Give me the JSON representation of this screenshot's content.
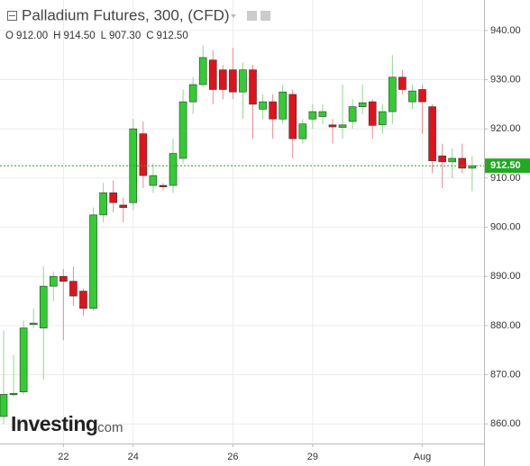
{
  "chart_data": {
    "type": "candlestick",
    "title": "Palladium Futures, 300, (CFD)",
    "ohlc_header": [
      {
        "key": "O",
        "label": "912.00"
      },
      {
        "key": "H",
        "label": "914.50"
      },
      {
        "key": "L",
        "label": "907.30"
      },
      {
        "key": "C",
        "label": "912.50"
      }
    ],
    "logo": {
      "main": "Investing",
      "suffix": ".com"
    },
    "categories": [
      null,
      null,
      null,
      null,
      null,
      null,
      "22",
      null,
      null,
      null,
      null,
      null,
      null,
      "24",
      null,
      null,
      null,
      null,
      null,
      null,
      null,
      null,
      null,
      "26",
      null,
      null,
      null,
      null,
      null,
      null,
      null,
      "29",
      null,
      null,
      null,
      null,
      null,
      null,
      null,
      null,
      null,
      null,
      "Aug",
      null,
      null,
      null,
      null,
      null
    ],
    "open": [
      861.5,
      866,
      866.5,
      880.2,
      879.5,
      888,
      890,
      889,
      887,
      883.5,
      902.5,
      907,
      904.5,
      905,
      919,
      908.5,
      908.5,
      908.5,
      914,
      925.5,
      929,
      934,
      932,
      932,
      927.5,
      932,
      924,
      925.5,
      922,
      927,
      918,
      922,
      922.5,
      920.8,
      920.3,
      921.5,
      924.5,
      925.5,
      920.8,
      923.5,
      930.5,
      925.5,
      928,
      924.5,
      914.5,
      913.3,
      914,
      912
    ],
    "high": [
      879,
      874,
      881,
      883.5,
      892,
      891,
      891.5,
      892,
      887.5,
      904,
      909,
      909.5,
      906,
      922,
      921.5,
      913,
      909,
      918,
      928,
      930.5,
      937,
      936,
      933,
      936.5,
      933.5,
      933,
      927,
      927,
      929,
      928,
      922,
      925,
      925,
      922,
      929,
      926,
      929,
      926,
      925,
      935,
      932,
      929,
      929,
      925,
      917,
      916,
      917,
      914.5
    ],
    "low": [
      860,
      865.5,
      866,
      879.5,
      869,
      885,
      877,
      884,
      882,
      883,
      901,
      903,
      901,
      903.5,
      908,
      907,
      907.5,
      907,
      913,
      923,
      928.5,
      925,
      926,
      926,
      922,
      918,
      922,
      918,
      921,
      914,
      917,
      920,
      921,
      917,
      918,
      920,
      923,
      918,
      919,
      921,
      927,
      924,
      919,
      911,
      908,
      910,
      911,
      907.3
    ],
    "close": [
      866,
      866.2,
      879.5,
      880.5,
      888,
      890,
      889,
      886,
      883.5,
      902.5,
      907,
      905,
      904,
      920,
      910.5,
      910.5,
      908.2,
      915,
      925.5,
      929,
      934.5,
      928,
      928,
      927.5,
      932,
      925,
      925.5,
      922,
      927.5,
      918,
      921,
      923.5,
      923.5,
      920.4,
      920.8,
      924.5,
      925.3,
      920.7,
      923.5,
      930.5,
      928,
      927.7,
      925.5,
      913.5,
      913.3,
      914,
      912,
      912.5
    ],
    "up_color": "#33cc33",
    "down_color": "#e0131c",
    "last_price": {
      "value": 912.5,
      "label": "912.50"
    },
    "last_color": "#22aa22",
    "ylim": [
      852.9,
      946.2
    ],
    "yticks": [
      {
        "value": 860,
        "label": "860.00"
      },
      {
        "value": 870,
        "label": "870.00"
      },
      {
        "value": 880,
        "label": "880.00"
      },
      {
        "value": 890,
        "label": "890.00"
      },
      {
        "value": 900,
        "label": "900.00"
      },
      {
        "value": 910,
        "label": "910.00"
      },
      {
        "value": 920,
        "label": "920.00"
      },
      {
        "value": 930,
        "label": "930.00"
      },
      {
        "value": 940,
        "label": "940.00"
      }
    ],
    "grid": true
  }
}
